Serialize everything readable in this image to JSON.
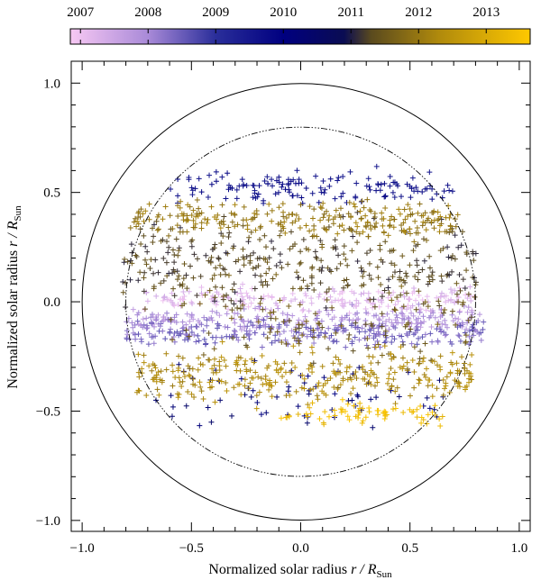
{
  "chart_data": {
    "type": "scatter",
    "title": "",
    "xlabel": "Normalized solar radius",
    "xlabel_math": {
      "var": "r",
      "sep": " / ",
      "sym": "R",
      "sub": "Sun"
    },
    "ylabel": "Normalized solar radius",
    "ylabel_math": {
      "var": "r",
      "sep": " / ",
      "sym": "R",
      "sub": "Sun"
    },
    "xlim": [
      -1.05,
      1.05
    ],
    "ylim": [
      -1.05,
      1.1
    ],
    "xticks": [
      {
        "v": -1.0,
        "label": "−1.0"
      },
      {
        "v": -0.5,
        "label": "−0.5"
      },
      {
        "v": 0.0,
        "label": "0.0"
      },
      {
        "v": 0.5,
        "label": "0.5"
      },
      {
        "v": 1.0,
        "label": "1.0"
      }
    ],
    "yticks": [
      {
        "v": 1.0,
        "label": "1.0"
      },
      {
        "v": 0.5,
        "label": "0.5"
      },
      {
        "v": 0.0,
        "label": "0.0"
      },
      {
        "v": -0.5,
        "label": "−0.5"
      },
      {
        "v": -1.0,
        "label": "−1.0"
      }
    ],
    "grid": false,
    "marker": "+",
    "reference_circles": [
      {
        "radius": 1.0,
        "style": "solid"
      },
      {
        "radius": 0.8,
        "style": "dash-dot-dot"
      }
    ],
    "colorbar": {
      "orientation": "horizontal",
      "placement": "top",
      "range": [
        2006.85,
        2013.65
      ],
      "ticks": [
        {
          "v": 2007,
          "label": "2007"
        },
        {
          "v": 2008,
          "label": "2008"
        },
        {
          "v": 2009,
          "label": "2009"
        },
        {
          "v": 2010,
          "label": "2010"
        },
        {
          "v": 2011,
          "label": "2011"
        },
        {
          "v": 2012,
          "label": "2012"
        },
        {
          "v": 2013,
          "label": "2013"
        }
      ],
      "stops": [
        {
          "v": 2006.85,
          "color": "#f7c8f3"
        },
        {
          "v": 2008.0,
          "color": "#a98ad8"
        },
        {
          "v": 2009.0,
          "color": "#2a2e9a"
        },
        {
          "v": 2010.0,
          "color": "#000080"
        },
        {
          "v": 2010.9,
          "color": "#0a0c52"
        },
        {
          "v": 2011.3,
          "color": "#5a4a1e"
        },
        {
          "v": 2012.3,
          "color": "#b08a0c"
        },
        {
          "v": 2013.65,
          "color": "#ffc800"
        }
      ]
    },
    "series": [
      {
        "year": 2007.2,
        "count": 190,
        "y_center": 0.01,
        "y_spread": 0.028,
        "x_range": [
          -0.72,
          0.82
        ]
      },
      {
        "year": 2007.9,
        "count": 240,
        "y_center": -0.085,
        "y_spread": 0.03,
        "x_range": [
          -0.8,
          0.82
        ]
      },
      {
        "year": 2008.4,
        "count": 240,
        "y_center": -0.145,
        "y_spread": 0.028,
        "x_range": [
          -0.8,
          0.86
        ]
      },
      {
        "year": 2009.7,
        "count": 150,
        "y_center": 0.52,
        "y_spread": 0.035,
        "x_range": [
          -0.6,
          0.75
        ]
      },
      {
        "year": 2010.2,
        "count": 70,
        "y_center": -0.42,
        "y_spread": 0.08,
        "x_range": [
          -0.7,
          0.72
        ]
      },
      {
        "year": 2011.3,
        "count": 320,
        "y_center": 0.19,
        "y_spread": 0.09,
        "x_range": [
          -0.82,
          0.82
        ]
      },
      {
        "year": 2011.5,
        "count": 160,
        "y_center": -0.09,
        "y_spread": 0.12,
        "x_range": [
          -0.6,
          0.8
        ]
      },
      {
        "year": 2012.0,
        "count": 260,
        "y_center": 0.38,
        "y_spread": 0.04,
        "x_range": [
          -0.78,
          0.72
        ]
      },
      {
        "year": 2012.3,
        "count": 320,
        "y_center": -0.33,
        "y_spread": 0.06,
        "x_range": [
          -0.75,
          0.82
        ]
      },
      {
        "year": 2013.4,
        "count": 70,
        "y_center": -0.51,
        "y_spread": 0.03,
        "x_range": [
          -0.1,
          0.65
        ]
      }
    ]
  }
}
